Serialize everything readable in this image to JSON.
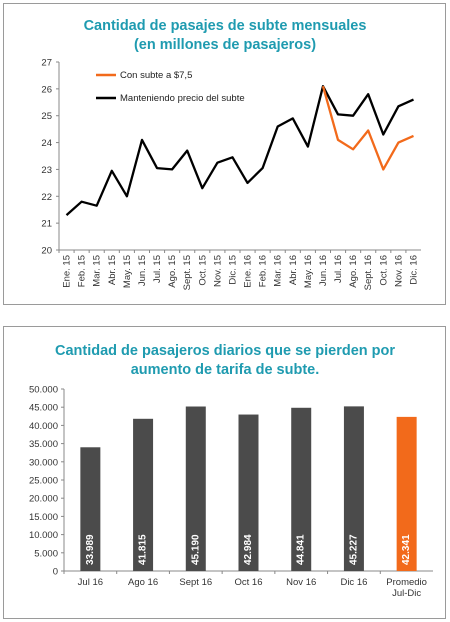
{
  "chart_data": [
    {
      "type": "line",
      "title": "Cantidad de pasajes de subte mensuales",
      "subtitle": "(en millones de pasajeros)",
      "xlabel": "",
      "ylabel": "",
      "ylim": [
        20,
        27
      ],
      "yticks": [
        "20",
        "21",
        "22",
        "23",
        "24",
        "25",
        "26",
        "27"
      ],
      "grid": false,
      "legend_position": "top-left",
      "categories": [
        "Ene. 15",
        "Feb. 15",
        "Mar. 15",
        "Abr. 15",
        "May. 15",
        "Jun. 15",
        "Jul. 15",
        "Ago. 15",
        "Sept. 15",
        "Oct. 15",
        "Nov. 15",
        "Dic. 15",
        "Ene. 16",
        "Feb. 16",
        "Mar. 16",
        "Abr. 16",
        "May. 16",
        "Jun. 16",
        "Jul. 16",
        "Ago. 16",
        "Sept. 16",
        "Oct. 16",
        "Nov. 16",
        "Dic. 16"
      ],
      "series": [
        {
          "name": "Con subte a $7,5",
          "color": "#f26a1b",
          "values": [
            null,
            null,
            null,
            null,
            null,
            null,
            null,
            null,
            null,
            null,
            null,
            null,
            null,
            null,
            null,
            null,
            null,
            26.1,
            24.1,
            23.75,
            24.45,
            23.0,
            24.0,
            24.25
          ]
        },
        {
          "name": "Manteniendo precio del subte",
          "color": "#000000",
          "values": [
            21.3,
            21.8,
            21.65,
            22.95,
            22.0,
            24.1,
            23.05,
            23.0,
            23.7,
            22.3,
            23.25,
            23.45,
            22.5,
            23.05,
            24.6,
            24.9,
            23.85,
            26.1,
            25.05,
            25.0,
            25.8,
            24.3,
            25.35,
            25.6
          ]
        }
      ]
    },
    {
      "type": "bar",
      "title": "Cantidad de pasajeros diarios que se pierden por",
      "subtitle": "aumento de tarifa de subte.",
      "xlabel": "",
      "ylabel": "",
      "ylim": [
        0,
        50000
      ],
      "yticks": [
        "0",
        "5.000",
        "10.000",
        "15.000",
        "20.000",
        "25.000",
        "30.000",
        "35.000",
        "40.000",
        "45.000",
        "50.000"
      ],
      "grid": false,
      "categories": [
        "Jul 16",
        "Ago 16",
        "Sept 16",
        "Oct 16",
        "Nov 16",
        "Dic 16",
        "Promedio Jul-Dic"
      ],
      "values": [
        33989,
        41815,
        45190,
        42984,
        44841,
        45227,
        42341
      ],
      "value_labels": [
        "33.989",
        "41.815",
        "45.190",
        "42.984",
        "44.841",
        "45.227",
        "42.341"
      ],
      "colors": [
        "#4b4b4b",
        "#4b4b4b",
        "#4b4b4b",
        "#4b4b4b",
        "#4b4b4b",
        "#4b4b4b",
        "#f26a1b"
      ]
    }
  ]
}
